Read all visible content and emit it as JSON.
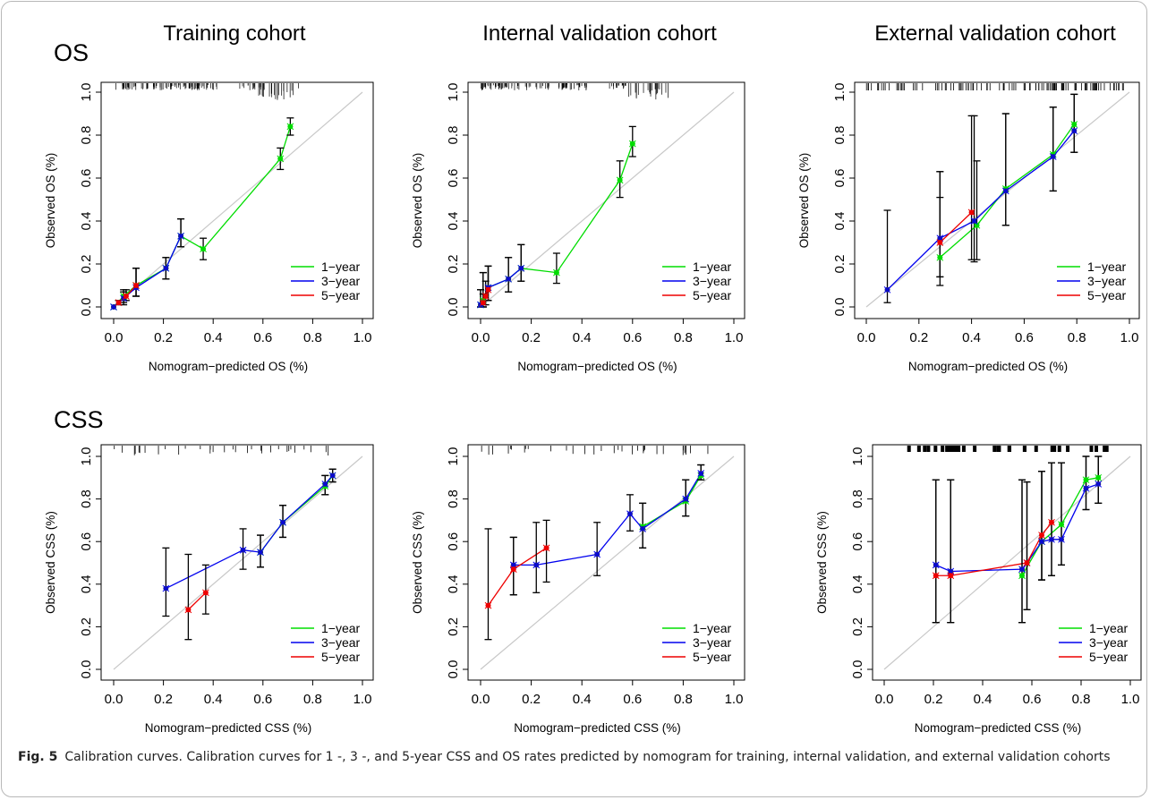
{
  "figure": {
    "column_titles": [
      "Training  cohort",
      "Internal validation  cohort",
      "External validation  cohort"
    ],
    "row_labels": [
      "OS",
      "CSS"
    ],
    "caption_label": "Fig. 5",
    "caption_text": "Calibration curves. Calibration curves for 1 -, 3 -, and 5-year CSS and OS rates predicted by nomogram for training, internal validation, and external validation cohorts"
  },
  "colors": {
    "1-year": "#00dd00",
    "3-year": "#0000ee",
    "5-year": "#ee0000",
    "diagonal": "#c8c8c8",
    "error_bar": "#000000",
    "point": "#1a1aa0"
  },
  "chart_data": [
    {
      "type": "line",
      "row": "OS",
      "cohort": "Training  cohort",
      "xlabel": "Nomogram−predicted OS (%)",
      "ylabel": "Observed OS (%)",
      "xlim": [
        0,
        1
      ],
      "ylim": [
        0,
        1
      ],
      "xticks": [
        "0.0",
        "0.2",
        "0.4",
        "0.6",
        "0.8",
        "1.0"
      ],
      "yticks": [
        "0.0",
        "0.2",
        "0.4",
        "0.6",
        "0.8",
        "1.0"
      ],
      "legend": [
        "1−year",
        "3−year",
        "5−year"
      ],
      "legend_position": "bottom-right",
      "rug": "dense",
      "series": [
        {
          "name": "1−year",
          "color": "#00dd00",
          "x": [
            0.0,
            0.04,
            0.09,
            0.21,
            0.27,
            0.36,
            0.67,
            0.71
          ],
          "y": [
            0.0,
            0.05,
            0.1,
            0.18,
            0.33,
            0.27,
            0.69,
            0.84
          ],
          "lo": [
            0.0,
            0.02,
            0.05,
            0.13,
            0.28,
            0.22,
            0.64,
            0.8
          ],
          "hi": [
            0.0,
            0.08,
            0.18,
            0.23,
            0.41,
            0.32,
            0.74,
            0.88
          ]
        },
        {
          "name": "3−year",
          "color": "#0000ee",
          "x": [
            0.0,
            0.04,
            0.09,
            0.21,
            0.27
          ],
          "y": [
            0.0,
            0.04,
            0.09,
            0.18,
            0.33
          ],
          "lo": [
            0.0,
            0.01,
            0.05,
            0.13,
            0.28
          ],
          "hi": [
            0.0,
            0.07,
            0.18,
            0.23,
            0.41
          ]
        },
        {
          "name": "5−year",
          "color": "#ee0000",
          "x": [
            0.02,
            0.05,
            0.09
          ],
          "y": [
            0.02,
            0.05,
            0.1
          ],
          "lo": [
            0.01,
            0.03,
            0.05
          ],
          "hi": [
            0.03,
            0.08,
            0.18
          ]
        }
      ]
    },
    {
      "type": "line",
      "row": "OS",
      "cohort": "Internal validation  cohort",
      "xlabel": "Nomogram−predicted OS (%)",
      "ylabel": "Observed OS (%)",
      "xlim": [
        0,
        1
      ],
      "ylim": [
        0,
        1
      ],
      "xticks": [
        "0.0",
        "0.2",
        "0.4",
        "0.6",
        "0.8",
        "1.0"
      ],
      "yticks": [
        "0.0",
        "0.2",
        "0.4",
        "0.6",
        "0.8",
        "1.0"
      ],
      "legend": [
        "1−year",
        "3−year",
        "5−year"
      ],
      "legend_position": "bottom-right",
      "rug": "dense",
      "series": [
        {
          "name": "1−year",
          "color": "#00dd00",
          "x": [
            0.0,
            0.01,
            0.03,
            0.11,
            0.16,
            0.3,
            0.55,
            0.6
          ],
          "y": [
            0.01,
            0.03,
            0.09,
            0.13,
            0.18,
            0.16,
            0.59,
            0.76
          ],
          "lo": [
            0.0,
            0.0,
            0.03,
            0.07,
            0.12,
            0.11,
            0.51,
            0.7
          ],
          "hi": [
            0.08,
            0.16,
            0.19,
            0.23,
            0.29,
            0.25,
            0.68,
            0.84
          ]
        },
        {
          "name": "3−year",
          "color": "#0000ee",
          "x": [
            0.0,
            0.01,
            0.03,
            0.11,
            0.16
          ],
          "y": [
            0.01,
            0.02,
            0.09,
            0.13,
            0.18
          ],
          "lo": [
            0.0,
            0.0,
            0.03,
            0.07,
            0.12
          ],
          "hi": [
            0.08,
            0.16,
            0.19,
            0.23,
            0.29
          ]
        },
        {
          "name": "5−year",
          "color": "#ee0000",
          "x": [
            0.01,
            0.02,
            0.03
          ],
          "y": [
            0.02,
            0.05,
            0.08
          ],
          "lo": [
            0.0,
            0.01,
            0.03
          ],
          "hi": [
            0.06,
            0.12,
            0.19
          ]
        }
      ]
    },
    {
      "type": "line",
      "row": "OS",
      "cohort": "External validation  cohort",
      "xlabel": "Nomogram−predicted OS (%)",
      "ylabel": "Observed OS (%)",
      "xlim": [
        0,
        1
      ],
      "ylim": [
        0,
        1
      ],
      "xticks": [
        "0.0",
        "0.2",
        "0.4",
        "0.6",
        "0.8",
        "1.0"
      ],
      "yticks": [
        "0.0",
        "0.2",
        "0.4",
        "0.6",
        "0.8",
        "1.0"
      ],
      "legend": [
        "1−year",
        "3−year",
        "5−year"
      ],
      "legend_position": "bottom-right",
      "rug": "sparse",
      "series": [
        {
          "name": "1−year",
          "color": "#00dd00",
          "x": [
            0.28,
            0.42,
            0.53,
            0.71,
            0.79
          ],
          "y": [
            0.23,
            0.38,
            0.55,
            0.71,
            0.85
          ],
          "lo": [
            0.1,
            0.22,
            0.38,
            0.54,
            0.72
          ],
          "hi": [
            0.51,
            0.68,
            0.9,
            0.93,
            0.99
          ]
        },
        {
          "name": "3−year",
          "color": "#0000ee",
          "x": [
            0.08,
            0.28,
            0.41,
            0.53,
            0.71,
            0.79
          ],
          "y": [
            0.08,
            0.32,
            0.4,
            0.54,
            0.7,
            0.82
          ],
          "lo": [
            0.02,
            0.14,
            0.21,
            0.38,
            0.54,
            0.72
          ],
          "hi": [
            0.45,
            0.63,
            0.89,
            0.9,
            0.93,
            0.99
          ]
        },
        {
          "name": "5−year",
          "color": "#ee0000",
          "x": [
            0.28,
            0.4
          ],
          "y": [
            0.3,
            0.44
          ],
          "lo": [
            0.14,
            0.22
          ],
          "hi": [
            0.63,
            0.89
          ]
        }
      ]
    },
    {
      "type": "line",
      "row": "CSS",
      "cohort": "Training  cohort",
      "xlabel": "Nomogram−predicted CSS (%)",
      "ylabel": "Observed CSS (%)",
      "xlim": [
        0,
        1
      ],
      "ylim": [
        0,
        1
      ],
      "xticks": [
        "0.0",
        "0.2",
        "0.4",
        "0.6",
        "0.8",
        "1.0"
      ],
      "yticks": [
        "0.0",
        "0.2",
        "0.4",
        "0.6",
        "0.8",
        "1.0"
      ],
      "legend": [
        "1−year",
        "3−year",
        "5−year"
      ],
      "legend_position": "bottom-right",
      "rug": "sparse-ticks",
      "series": [
        {
          "name": "1−year",
          "color": "#00dd00",
          "x": [
            0.59,
            0.68,
            0.85,
            0.88
          ],
          "y": [
            0.55,
            0.69,
            0.86,
            0.91
          ],
          "lo": [
            0.48,
            0.62,
            0.82,
            0.88
          ],
          "hi": [
            0.63,
            0.77,
            0.91,
            0.94
          ]
        },
        {
          "name": "3−year",
          "color": "#0000ee",
          "x": [
            0.21,
            0.52,
            0.59,
            0.68,
            0.85,
            0.88
          ],
          "y": [
            0.38,
            0.56,
            0.55,
            0.69,
            0.87,
            0.91
          ],
          "lo": [
            0.25,
            0.47,
            0.48,
            0.62,
            0.82,
            0.88
          ],
          "hi": [
            0.57,
            0.66,
            0.63,
            0.77,
            0.91,
            0.94
          ]
        },
        {
          "name": "5−year",
          "color": "#ee0000",
          "x": [
            0.3,
            0.37
          ],
          "y": [
            0.28,
            0.36
          ],
          "lo": [
            0.14,
            0.26
          ],
          "hi": [
            0.54,
            0.49
          ]
        }
      ]
    },
    {
      "type": "line",
      "row": "CSS",
      "cohort": "Internal validation  cohort",
      "xlabel": "Nomogram−predicted CSS (%)",
      "ylabel": "Observed CSS (%)",
      "xlim": [
        0,
        1
      ],
      "ylim": [
        0,
        1
      ],
      "xticks": [
        "0.0",
        "0.2",
        "0.4",
        "0.6",
        "0.8",
        "1.0"
      ],
      "yticks": [
        "0.0",
        "0.2",
        "0.4",
        "0.6",
        "0.8",
        "1.0"
      ],
      "legend": [
        "1−year",
        "3−year",
        "5−year"
      ],
      "legend_position": "bottom-right",
      "rug": "sparse-ticks",
      "series": [
        {
          "name": "1−year",
          "color": "#00dd00",
          "x": [
            0.64,
            0.81,
            0.87
          ],
          "y": [
            0.67,
            0.79,
            0.91
          ],
          "lo": [
            0.57,
            0.72,
            0.89
          ],
          "hi": [
            0.78,
            0.89,
            0.96
          ]
        },
        {
          "name": "3−year",
          "color": "#0000ee",
          "x": [
            0.13,
            0.22,
            0.46,
            0.59,
            0.64,
            0.81,
            0.87
          ],
          "y": [
            0.49,
            0.49,
            0.54,
            0.73,
            0.66,
            0.8,
            0.92
          ],
          "lo": [
            0.35,
            0.36,
            0.44,
            0.65,
            0.57,
            0.72,
            0.89
          ],
          "hi": [
            0.62,
            0.69,
            0.69,
            0.82,
            0.78,
            0.89,
            0.96
          ]
        },
        {
          "name": "5−year",
          "color": "#ee0000",
          "x": [
            0.03,
            0.13,
            0.26
          ],
          "y": [
            0.3,
            0.47,
            0.57
          ],
          "lo": [
            0.14,
            0.35,
            0.41
          ],
          "hi": [
            0.66,
            0.62,
            0.7
          ]
        }
      ]
    },
    {
      "type": "line",
      "row": "CSS",
      "cohort": "External validation  cohort",
      "xlabel": "Nomogram−predicted CSS (%)",
      "ylabel": "Observed CSS (%)",
      "xlim": [
        0,
        1
      ],
      "ylim": [
        0,
        1
      ],
      "xticks": [
        "0.0",
        "0.2",
        "0.4",
        "0.6",
        "0.8",
        "1.0"
      ],
      "yticks": [
        "0.0",
        "0.2",
        "0.4",
        "0.6",
        "0.8",
        "1.0"
      ],
      "legend": [
        "1−year",
        "3−year",
        "5−year"
      ],
      "legend_position": "bottom-right",
      "rug": "blocks",
      "series": [
        {
          "name": "1−year",
          "color": "#00dd00",
          "x": [
            0.56,
            0.64,
            0.72,
            0.82,
            0.87
          ],
          "y": [
            0.44,
            0.6,
            0.68,
            0.89,
            0.9
          ],
          "lo": [
            0.22,
            0.42,
            0.49,
            0.75,
            0.78
          ],
          "hi": [
            0.89,
            0.93,
            0.97,
            1.0,
            1.0
          ]
        },
        {
          "name": "3−year",
          "color": "#0000ee",
          "x": [
            0.21,
            0.27,
            0.56,
            0.58,
            0.64,
            0.68,
            0.72,
            0.82,
            0.87
          ],
          "y": [
            0.49,
            0.46,
            0.47,
            0.5,
            0.6,
            0.61,
            0.61,
            0.85,
            0.87
          ],
          "lo": [
            0.22,
            0.22,
            0.22,
            0.28,
            0.42,
            0.44,
            0.49,
            0.75,
            0.78
          ],
          "hi": [
            0.89,
            0.89,
            0.89,
            0.88,
            0.93,
            0.97,
            0.97,
            1.0,
            1.0
          ]
        },
        {
          "name": "5−year",
          "color": "#ee0000",
          "x": [
            0.21,
            0.27,
            0.58,
            0.64,
            0.68
          ],
          "y": [
            0.44,
            0.44,
            0.5,
            0.63,
            0.69
          ],
          "lo": [
            0.22,
            0.22,
            0.28,
            0.42,
            0.44
          ],
          "hi": [
            0.89,
            0.89,
            0.88,
            0.93,
            0.97
          ]
        }
      ]
    }
  ]
}
